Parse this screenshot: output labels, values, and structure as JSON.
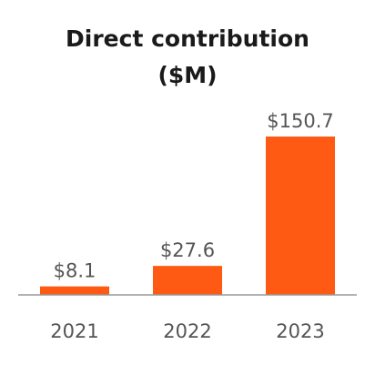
{
  "chart_data": {
    "type": "bar",
    "title": [
      "Direct contribution",
      "($M)"
    ],
    "categories": [
      "2021",
      "2022",
      "2023"
    ],
    "values": [
      8.1,
      27.6,
      150.7
    ],
    "value_labels": [
      "$8.1",
      "$27.6",
      "$150.7"
    ],
    "ylim": [
      0,
      150.7
    ],
    "grid": false,
    "bar_color": "#FF5A14",
    "axis_color": "#999999"
  }
}
